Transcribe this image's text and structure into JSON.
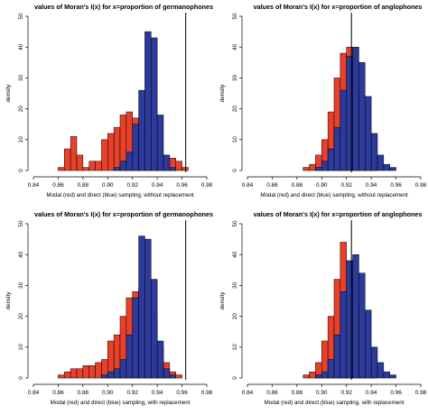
{
  "chart_data": [
    {
      "type": "bar",
      "title": "values of Moran's I(x) for  x=proportion of germanophones",
      "xlabel": "Modal (red) and direct (blue) sampling, without replacement",
      "ylabel": "density",
      "xlim": [
        0.84,
        0.98
      ],
      "ylim": [
        0,
        50
      ],
      "x_ticks": [
        "0.84",
        "0.86",
        "0.88",
        "0.90",
        "0.92",
        "0.94",
        "0.96",
        "0.98"
      ],
      "y_ticks": [
        "0",
        "10",
        "20",
        "30",
        "40",
        "50"
      ],
      "bin_width": 0.005,
      "bin_starts": [
        0.86,
        0.865,
        0.87,
        0.875,
        0.88,
        0.885,
        0.89,
        0.895,
        0.9,
        0.905,
        0.91,
        0.915,
        0.92,
        0.925,
        0.93,
        0.935,
        0.94,
        0.945,
        0.95,
        0.955,
        0.96
      ],
      "series": [
        {
          "name": "modal (red)",
          "color": "#e8412b",
          "values": [
            1,
            7,
            11,
            5,
            1,
            3,
            3,
            10,
            12,
            14,
            18,
            19,
            17,
            14,
            10,
            4,
            2,
            1,
            4,
            3,
            1
          ]
        },
        {
          "name": "direct (blue)",
          "color": "#2b3a9b",
          "values": [
            0,
            0,
            0,
            0,
            0,
            0,
            0,
            0,
            0,
            1,
            3,
            6,
            15,
            26,
            45,
            43,
            18,
            5,
            1,
            0,
            0
          ]
        }
      ],
      "vline": 0.963,
      "grid": false
    },
    {
      "type": "bar",
      "title": "values of Moran's I(x) for  x=proportion of anglophones",
      "xlabel": "Modal (red) and direct (blue) sampling, without replacement",
      "ylabel": "density",
      "xlim": [
        0.84,
        0.98
      ],
      "ylim": [
        0,
        50
      ],
      "x_ticks": [
        "0.84",
        "0.86",
        "0.88",
        "0.90",
        "0.92",
        "0.94",
        "0.96",
        "0.98"
      ],
      "y_ticks": [
        "0",
        "10",
        "20",
        "30",
        "40",
        "50"
      ],
      "bin_width": 0.005,
      "bin_starts": [
        0.885,
        0.89,
        0.895,
        0.9,
        0.905,
        0.91,
        0.915,
        0.92,
        0.925,
        0.93,
        0.935,
        0.94,
        0.945,
        0.95,
        0.955,
        0.96
      ],
      "series": [
        {
          "name": "modal (red)",
          "color": "#e8412b",
          "values": [
            1,
            2,
            5,
            10,
            19,
            30,
            38,
            40,
            25,
            10,
            3,
            1,
            0,
            0,
            0,
            0
          ]
        },
        {
          "name": "direct (blue)",
          "color": "#2b3a9b",
          "values": [
            0,
            0,
            1,
            3,
            7,
            14,
            26,
            37,
            40,
            35,
            24,
            12,
            5,
            2,
            1,
            0
          ]
        }
      ],
      "vline": 0.924,
      "grid": false
    },
    {
      "type": "bar",
      "title": "values of Moran's I(x) for  x=proportion of germanophones",
      "xlabel": "Modal (red) and direct (blue) sampling, with replacement",
      "ylabel": "density",
      "xlim": [
        0.84,
        0.98
      ],
      "ylim": [
        0,
        50
      ],
      "x_ticks": [
        "0.84",
        "0.86",
        "0.88",
        "0.90",
        "0.92",
        "0.94",
        "0.96",
        "0.98"
      ],
      "y_ticks": [
        "0",
        "10",
        "20",
        "30",
        "40",
        "50"
      ],
      "bin_width": 0.005,
      "bin_starts": [
        0.86,
        0.865,
        0.87,
        0.875,
        0.88,
        0.885,
        0.89,
        0.895,
        0.9,
        0.905,
        0.91,
        0.915,
        0.92,
        0.925,
        0.93,
        0.935,
        0.94,
        0.945,
        0.95,
        0.955
      ],
      "series": [
        {
          "name": "modal (red)",
          "color": "#e8412b",
          "values": [
            1,
            2,
            3,
            3,
            4,
            4,
            5,
            6,
            12,
            14,
            20,
            26,
            28,
            29,
            30,
            20,
            10,
            5,
            2,
            1
          ]
        },
        {
          "name": "direct (blue)",
          "color": "#2b3a9b",
          "values": [
            0,
            0,
            0,
            0,
            0,
            0,
            0,
            1,
            2,
            3,
            6,
            14,
            26,
            46,
            45,
            32,
            12,
            3,
            1,
            0
          ]
        }
      ],
      "vline": 0.963,
      "grid": false
    },
    {
      "type": "bar",
      "title": "values of Moran's I(x) for  x=proportion of anglophones",
      "xlabel": "Modal (red) and direct (blue) sampling, with replacement",
      "ylabel": "density",
      "xlim": [
        0.84,
        0.98
      ],
      "ylim": [
        0,
        50
      ],
      "x_ticks": [
        "0.84",
        "0.86",
        "0.88",
        "0.90",
        "0.92",
        "0.94",
        "0.96",
        "0.98"
      ],
      "y_ticks": [
        "0",
        "10",
        "20",
        "30",
        "40",
        "50"
      ],
      "bin_width": 0.005,
      "bin_starts": [
        0.885,
        0.89,
        0.895,
        0.9,
        0.905,
        0.91,
        0.915,
        0.92,
        0.925,
        0.93,
        0.935,
        0.94,
        0.945,
        0.95,
        0.955,
        0.96
      ],
      "series": [
        {
          "name": "modal (red)",
          "color": "#e8412b",
          "values": [
            1,
            2,
            5,
            12,
            20,
            32,
            44,
            38,
            24,
            12,
            4,
            1,
            0,
            0,
            0,
            0
          ]
        },
        {
          "name": "direct (blue)",
          "color": "#2b3a9b",
          "values": [
            0,
            0,
            1,
            2,
            6,
            14,
            28,
            38,
            40,
            34,
            22,
            10,
            5,
            2,
            1,
            0
          ]
        }
      ],
      "vline": 0.924,
      "grid": false
    }
  ]
}
